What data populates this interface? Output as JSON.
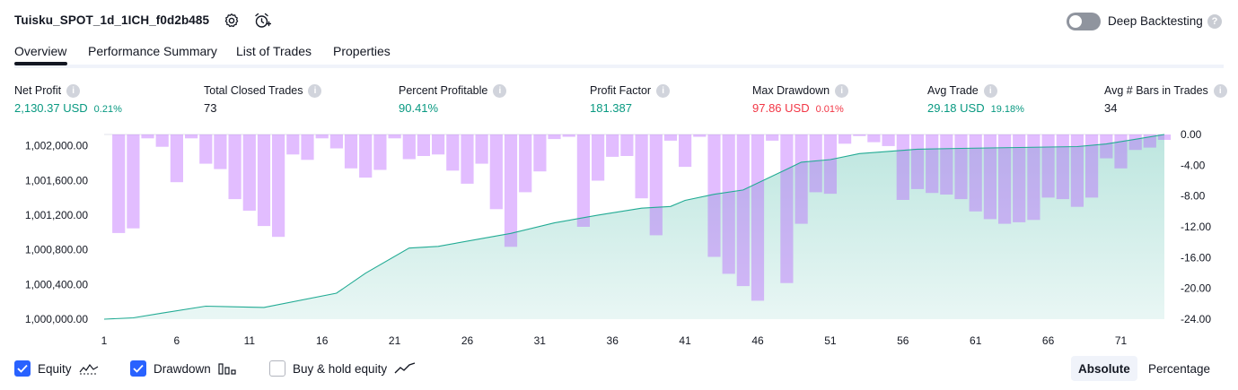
{
  "header": {
    "strategy_title": "Tuisku_SPOT_1d_1ICH_f0d2b485",
    "icons": [
      "settings-icon",
      "add-alert-icon"
    ],
    "deep_backtesting": {
      "label": "Deep Backtesting",
      "enabled": false,
      "help": "?"
    }
  },
  "tabs": [
    {
      "label": "Overview",
      "active": true
    },
    {
      "label": "Performance Summary",
      "active": false
    },
    {
      "label": "List of Trades",
      "active": false
    },
    {
      "label": "Properties",
      "active": false
    }
  ],
  "metrics": [
    {
      "label": "Net Profit",
      "value": "2,130.37 USD",
      "pct": "0.21%",
      "tone": "pos"
    },
    {
      "label": "Total Closed Trades",
      "value": "73",
      "pct": "",
      "tone": "neutral"
    },
    {
      "label": "Percent Profitable",
      "value": "90.41%",
      "pct": "",
      "tone": "pos"
    },
    {
      "label": "Profit Factor",
      "value": "181.387",
      "pct": "",
      "tone": "pos"
    },
    {
      "label": "Max Drawdown",
      "value": "97.86 USD",
      "pct": "0.01%",
      "tone": "neg"
    },
    {
      "label": "Avg Trade",
      "value": "29.18 USD",
      "pct": "19.18%",
      "tone": "pos"
    },
    {
      "label": "Avg # Bars in Trades",
      "value": "34",
      "pct": "",
      "tone": "neutral"
    }
  ],
  "info_glyph": "i",
  "colors": {
    "equity_line": "#22ab94",
    "equity_fill": "#22ab94",
    "drawdown_bar": "#b452ff",
    "accent": "#2962ff",
    "positive": "#089981",
    "negative": "#f23645"
  },
  "chart_data": {
    "type": "area",
    "x_ticks": [
      1,
      6,
      11,
      16,
      21,
      26,
      31,
      36,
      41,
      46,
      51,
      56,
      61,
      66,
      71
    ],
    "x_range": [
      1,
      74
    ],
    "y_left": {
      "ticks": [
        "1,000,000.00",
        "1,000,400.00",
        "1,000,800.00",
        "1,001,200.00",
        "1,001,600.00",
        "1,002,000.00"
      ],
      "range": [
        1000000,
        1002130
      ]
    },
    "y_right": {
      "ticks": [
        "0.00",
        "-4.00",
        "-8.00",
        "-12.00",
        "-16.00",
        "-20.00",
        "-24.00"
      ],
      "range": [
        -24,
        0
      ]
    },
    "series": [
      {
        "name": "Equity",
        "kind": "area",
        "axis": "left",
        "x": [
          1,
          3,
          5,
          8,
          12,
          17,
          19,
          22,
          24,
          29,
          32,
          35,
          38,
          40,
          41,
          43,
          45,
          48,
          49,
          51,
          53,
          57,
          60,
          64,
          68,
          70,
          74
        ],
        "values": [
          1000000,
          1000015,
          1000070,
          1000150,
          1000135,
          1000300,
          1000530,
          1000820,
          1000840,
          1000990,
          1001110,
          1001200,
          1001280,
          1001300,
          1001370,
          1001440,
          1001490,
          1001730,
          1001810,
          1001840,
          1001910,
          1001960,
          1001970,
          1001980,
          1001990,
          1002020,
          1002130
        ]
      },
      {
        "name": "Drawdown",
        "kind": "bar",
        "axis": "right",
        "x": [
          2,
          3,
          4,
          5,
          6,
          7,
          8,
          9,
          10,
          11,
          12,
          13,
          14,
          15,
          16,
          17,
          18,
          19,
          20,
          21,
          22,
          23,
          24,
          25,
          26,
          27,
          28,
          29,
          30,
          31,
          32,
          33,
          34,
          35,
          36,
          37,
          38,
          39,
          40,
          41,
          42,
          43,
          44,
          45,
          46,
          47,
          48,
          49,
          50,
          51,
          52,
          53,
          54,
          55,
          56,
          57,
          58,
          59,
          60,
          61,
          62,
          63,
          64,
          65,
          66,
          67,
          68,
          69,
          70,
          71,
          72,
          73,
          74
        ],
        "values": [
          -12.8,
          -12.2,
          -0.5,
          -1.6,
          -6.2,
          -0.5,
          -3.8,
          -4.5,
          -8.4,
          -9.9,
          -11.9,
          -13.3,
          -2.6,
          -3.3,
          -0.5,
          -1.8,
          -4.4,
          -5.6,
          -4.6,
          -0.5,
          -3.2,
          -2.8,
          -2.6,
          -4.7,
          -6.4,
          -3.8,
          -9.7,
          -14.6,
          -7.5,
          -4.8,
          -0.6,
          -0.3,
          -12.0,
          -6.0,
          -2.9,
          -2.8,
          -8.3,
          -13.1,
          -0.8,
          -4.2,
          -0.3,
          -15.9,
          -18.1,
          -19.7,
          -21.6,
          -0.8,
          -19.3,
          -11.6,
          -7.5,
          -7.7,
          -1.2,
          -0.2,
          -1.0,
          -1.5,
          -8.5,
          -7.1,
          -7.6,
          -7.8,
          -8.4,
          -10.0,
          -11.0,
          -11.6,
          -11.4,
          -11.1,
          -8.2,
          -8.4,
          -9.4,
          -8.2,
          -3.1,
          -4.4,
          -2.0,
          -1.7,
          -0.7
        ]
      },
      {
        "name": "Buy & hold equity",
        "kind": "line",
        "axis": "left",
        "visible": false,
        "x": [],
        "values": []
      }
    ]
  },
  "legend": [
    {
      "label": "Equity",
      "checked": true,
      "glyph": "equity-glyph-icon"
    },
    {
      "label": "Drawdown",
      "checked": true,
      "glyph": "drawdown-glyph-icon"
    },
    {
      "label": "Buy & hold equity",
      "checked": false,
      "glyph": "buy-hold-glyph-icon"
    }
  ],
  "view_modes": [
    {
      "label": "Absolute",
      "active": true
    },
    {
      "label": "Percentage",
      "active": false
    }
  ]
}
